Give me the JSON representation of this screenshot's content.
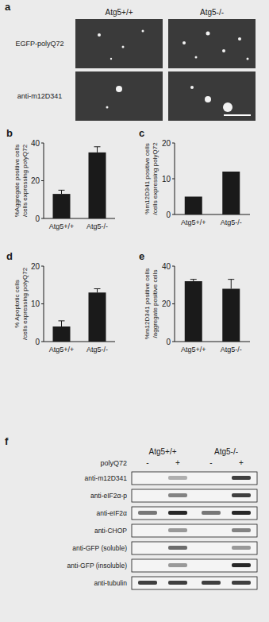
{
  "panel_a": {
    "panel": "a",
    "columns": [
      "Atg5+/+",
      "Atg5-/-"
    ],
    "rows": [
      "EGFP-polyQ72",
      "anti-m12D341"
    ]
  },
  "chart_data": [
    {
      "panel": "b",
      "type": "bar",
      "categories": [
        "Atg5+/+",
        "Atg5-/-"
      ],
      "values": [
        13,
        35
      ],
      "errors": [
        2,
        3
      ],
      "y_label": [
        "%Aggregate positive cells",
        "/cells expressing polyQ72"
      ],
      "ylim": [
        0,
        40
      ],
      "yticks": [
        0,
        20,
        40
      ],
      "color": "#1a1a1a"
    },
    {
      "panel": "c",
      "type": "bar",
      "categories": [
        "Atg5+/+",
        "Atg5-/-"
      ],
      "values": [
        5,
        12
      ],
      "y_label": [
        "%m12D341 positive cells",
        "/cells expressing polyQ72"
      ],
      "ylim": [
        0,
        20
      ],
      "yticks": [
        0,
        10,
        20
      ],
      "color": "#1a1a1a"
    },
    {
      "panel": "d",
      "type": "bar",
      "categories": [
        "Atg5+/+",
        "Atg5-/-"
      ],
      "values": [
        4,
        13
      ],
      "errors": [
        1.5,
        1
      ],
      "y_label": [
        "% Apoptotic cells",
        "/cells expressing polyQ72"
      ],
      "ylim": [
        0,
        20
      ],
      "yticks": [
        0,
        10,
        20
      ],
      "color": "#1a1a1a"
    },
    {
      "panel": "e",
      "type": "bar",
      "categories": [
        "Atg5+/+",
        "Atg5-/-"
      ],
      "values": [
        32,
        28
      ],
      "errors": [
        1,
        5
      ],
      "y_label": [
        "%m12D341 positive cells",
        "/aggregate positive cells"
      ],
      "ylim": [
        0,
        40
      ],
      "yticks": [
        0,
        20,
        40
      ],
      "color": "#1a1a1a"
    }
  ],
  "panel_f": {
    "panel": "f",
    "groups": [
      "Atg5+/+",
      "Atg5-/-"
    ],
    "lane_label": "polyQ72",
    "lanes": [
      "-",
      "+",
      "-",
      "+"
    ],
    "blots": [
      {
        "label": "anti-m12D341",
        "bands": [
          0,
          0.3,
          0,
          0.8
        ]
      },
      {
        "label": "anti-eIF2α-p",
        "bands": [
          0,
          0.5,
          0,
          0.8
        ]
      },
      {
        "label": "anti-eIF2α",
        "bands": [
          0.55,
          0.9,
          0.55,
          0.9
        ]
      },
      {
        "label": "anti-CHOP",
        "bands": [
          0,
          0.4,
          0,
          0.5
        ]
      },
      {
        "label": "anti-GFP (soluble)",
        "bands": [
          0,
          0.6,
          0,
          0.4
        ]
      },
      {
        "label": "anti-GFP (insoluble)",
        "bands": [
          0,
          0.4,
          0,
          0.9
        ]
      },
      {
        "label": "anti-tubulin",
        "bands": [
          0.8,
          0.8,
          0.8,
          0.8
        ]
      }
    ]
  }
}
